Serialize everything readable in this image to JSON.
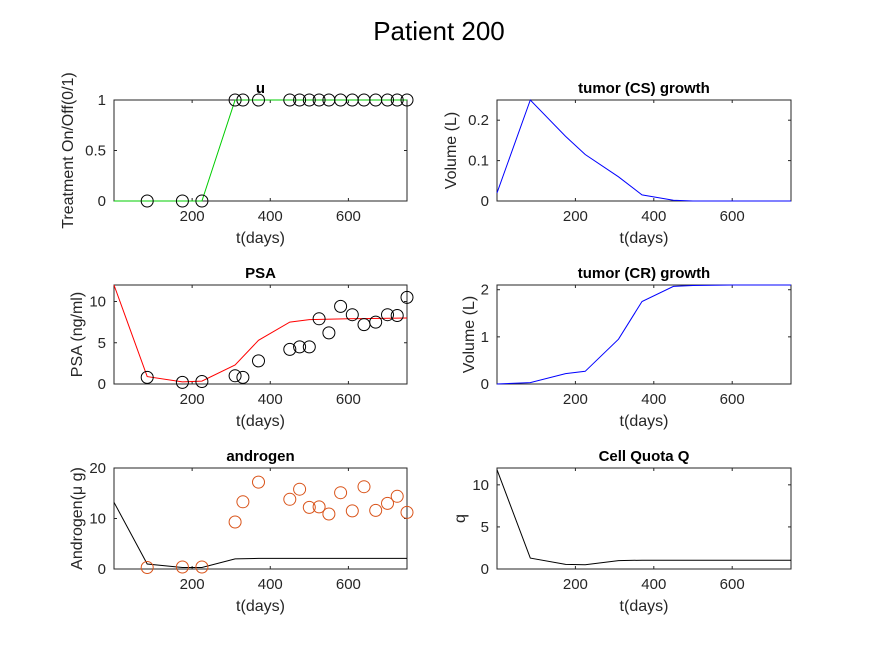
{
  "figure_title": "Patient 200",
  "chart_data": [
    {
      "id": "u",
      "type": "line",
      "title": "u",
      "xlabel": "t(days)",
      "ylabel": "Treatment On/Off(0/1)",
      "xlim": [
        0,
        750
      ],
      "ylim": [
        0,
        1
      ],
      "xticks": [
        200,
        400,
        600
      ],
      "yticks": [
        0,
        0.5,
        1
      ],
      "series": [
        {
          "kind": "line",
          "color": "#00cc00",
          "x": [
            0,
            85,
            175,
            225,
            310,
            330,
            370,
            450,
            475,
            500,
            525,
            550,
            580,
            610,
            640,
            670,
            700,
            725,
            750
          ],
          "y": [
            0,
            0,
            0,
            0,
            1,
            1,
            1,
            1,
            1,
            1,
            1,
            1,
            1,
            1,
            1,
            1,
            1,
            1,
            1
          ]
        },
        {
          "kind": "markers",
          "color": "#000000",
          "x": [
            85,
            175,
            225,
            310,
            330,
            370,
            450,
            475,
            500,
            525,
            550,
            580,
            610,
            640,
            670,
            700,
            725,
            750
          ],
          "y": [
            0,
            0,
            0,
            1,
            1,
            1,
            1,
            1,
            1,
            1,
            1,
            1,
            1,
            1,
            1,
            1,
            1,
            1
          ]
        }
      ]
    },
    {
      "id": "cs",
      "type": "line",
      "title": "tumor (CS) growth",
      "xlabel": "t(days)",
      "ylabel": "Volume (L)",
      "xlim": [
        0,
        750
      ],
      "ylim": [
        0,
        0.25
      ],
      "xticks": [
        200,
        400,
        600
      ],
      "yticks": [
        0,
        0.1,
        0.2
      ],
      "series": [
        {
          "kind": "line",
          "color": "#0000ff",
          "x": [
            0,
            85,
            175,
            225,
            310,
            370,
            450,
            500,
            600,
            750
          ],
          "y": [
            0.02,
            0.25,
            0.16,
            0.115,
            0.06,
            0.015,
            0.002,
            0,
            0,
            0
          ]
        }
      ]
    },
    {
      "id": "psa",
      "type": "line",
      "title": "PSA",
      "xlabel": "t(days)",
      "ylabel": "PSA (ng/ml)",
      "xlim": [
        0,
        750
      ],
      "ylim": [
        0,
        12
      ],
      "xticks": [
        200,
        400,
        600
      ],
      "yticks": [
        0,
        5,
        10
      ],
      "series": [
        {
          "kind": "line",
          "color": "#ff0000",
          "x": [
            0,
            85,
            175,
            225,
            310,
            370,
            450,
            500,
            600,
            750
          ],
          "y": [
            12,
            0.9,
            0.25,
            0.35,
            2.3,
            5.3,
            7.5,
            7.8,
            7.9,
            8.0
          ]
        },
        {
          "kind": "markers",
          "color": "#000000",
          "x": [
            85,
            175,
            225,
            310,
            330,
            370,
            450,
            475,
            500,
            525,
            550,
            580,
            610,
            640,
            670,
            700,
            725,
            750
          ],
          "y": [
            0.8,
            0.2,
            0.3,
            1.0,
            0.8,
            2.8,
            4.2,
            4.5,
            4.5,
            7.9,
            6.2,
            9.4,
            8.4,
            7.2,
            7.5,
            8.4,
            8.3,
            10.5
          ]
        }
      ]
    },
    {
      "id": "cr",
      "type": "line",
      "title": "tumor (CR) growth",
      "xlabel": "t(days)",
      "ylabel": "Volume (L)",
      "xlim": [
        0,
        750
      ],
      "ylim": [
        0,
        2.1
      ],
      "xticks": [
        200,
        400,
        600
      ],
      "yticks": [
        0,
        1,
        2
      ],
      "series": [
        {
          "kind": "line",
          "color": "#0000ff",
          "x": [
            0,
            85,
            175,
            225,
            310,
            370,
            450,
            500,
            600,
            750
          ],
          "y": [
            0,
            0.03,
            0.22,
            0.27,
            0.95,
            1.75,
            2.07,
            2.09,
            2.1,
            2.1
          ]
        }
      ]
    },
    {
      "id": "androgen",
      "type": "line",
      "title": "androgen",
      "xlabel": "t(days)",
      "ylabel": "Androgen(μ g)",
      "xlim": [
        0,
        750
      ],
      "ylim": [
        0,
        20
      ],
      "xticks": [
        200,
        400,
        600
      ],
      "yticks": [
        0,
        10,
        20
      ],
      "series": [
        {
          "kind": "line",
          "color": "#000000",
          "x": [
            0,
            85,
            175,
            225,
            310,
            370,
            450,
            600,
            750
          ],
          "y": [
            13.2,
            1.0,
            0.3,
            0.3,
            2.0,
            2.1,
            2.1,
            2.1,
            2.1
          ]
        },
        {
          "kind": "markers",
          "color": "#d95319",
          "x": [
            85,
            175,
            225,
            310,
            330,
            370,
            450,
            475,
            500,
            525,
            550,
            580,
            610,
            640,
            670,
            700,
            725,
            750
          ],
          "y": [
            0.3,
            0.4,
            0.4,
            9.3,
            13.3,
            17.2,
            13.8,
            15.8,
            12.2,
            12.3,
            10.9,
            15.1,
            11.5,
            16.3,
            11.6,
            13.0,
            14.4,
            11.2
          ]
        }
      ]
    },
    {
      "id": "quota",
      "type": "line",
      "title": "Cell Quota Q",
      "xlabel": "t(days)",
      "ylabel": "q",
      "xlim": [
        0,
        750
      ],
      "ylim": [
        0,
        12
      ],
      "xticks": [
        200,
        400,
        600
      ],
      "yticks": [
        0,
        5,
        10
      ],
      "series": [
        {
          "kind": "line",
          "color": "#000000",
          "x": [
            0,
            85,
            175,
            225,
            310,
            370,
            450,
            600,
            750
          ],
          "y": [
            11.8,
            1.3,
            0.55,
            0.5,
            1.0,
            1.05,
            1.05,
            1.05,
            1.05
          ]
        }
      ]
    }
  ]
}
